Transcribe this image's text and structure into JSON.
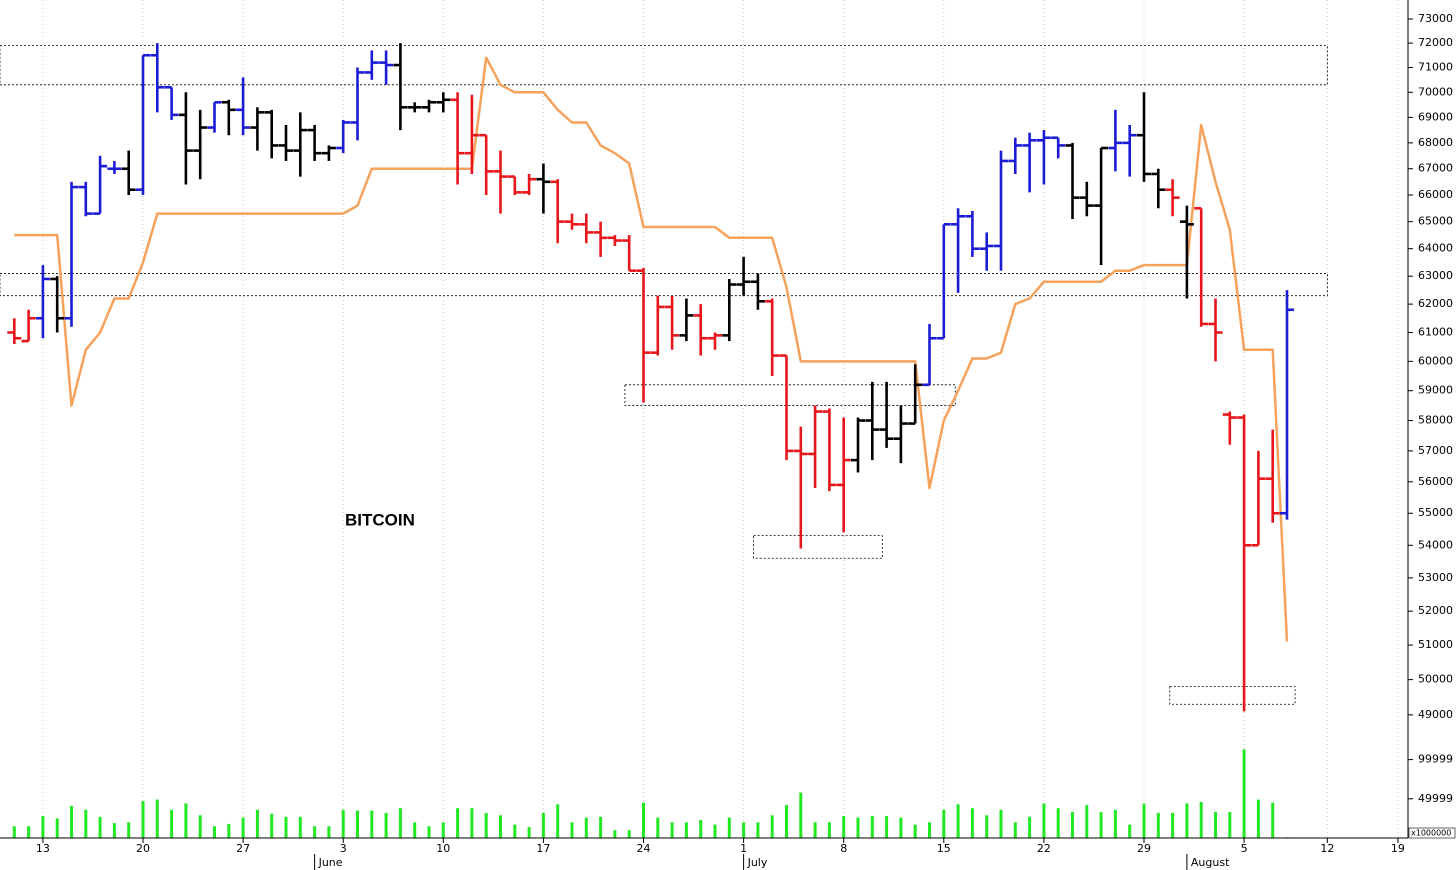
{
  "chart_data": {
    "type": "ohlc",
    "title": "BITCOIN",
    "log_scale": true,
    "grid": true,
    "ylim": [
      48300,
      73800
    ],
    "yticks": [
      49000,
      50000,
      51000,
      52000,
      53000,
      54000,
      55000,
      56000,
      57000,
      58000,
      59000,
      60000,
      61000,
      62000,
      63000,
      64000,
      65000,
      66000,
      67000,
      68000,
      69000,
      70000,
      71000,
      72000,
      73000
    ],
    "xlim": [
      -1,
      101
    ],
    "xticks": [
      {
        "value": 2,
        "label": "13"
      },
      {
        "value": 9,
        "label": "20"
      },
      {
        "value": 16,
        "label": "27"
      },
      {
        "value": 23,
        "label": "3"
      },
      {
        "value": 30,
        "label": "10"
      },
      {
        "value": 37,
        "label": "17"
      },
      {
        "value": 44,
        "label": "24"
      },
      {
        "value": 51,
        "label": "1"
      },
      {
        "value": 58,
        "label": "8"
      },
      {
        "value": 65,
        "label": "15"
      },
      {
        "value": 72,
        "label": "22"
      },
      {
        "value": 79,
        "label": "29"
      },
      {
        "value": 86,
        "label": "5"
      },
      {
        "value": 93,
        "label": "12"
      },
      {
        "value": 100,
        "label": "19"
      }
    ],
    "month_ticks": [
      {
        "value": 21,
        "label": "June"
      },
      {
        "value": 51,
        "label": "July"
      },
      {
        "value": 82,
        "label": "August"
      }
    ],
    "open": [
      61000,
      60700,
      61500,
      62900,
      61500,
      66300,
      65300,
      67000,
      67000,
      66200,
      71500,
      70200,
      69100,
      67700,
      68600,
      69600,
      69300,
      68600,
      69200,
      67900,
      67700,
      68500,
      67600,
      67800,
      68800,
      70800,
      71200,
      71100,
      69400,
      69400,
      69600,
      69700,
      67600,
      68300,
      66900,
      66700,
      66100,
      66600,
      66500,
      65000,
      64900,
      64600,
      64400,
      64300,
      63200,
      60300,
      61900,
      60900,
      61600,
      60800,
      60900,
      62700,
      62800,
      62100,
      60200,
      57000,
      56900,
      58300,
      55900,
      56700,
      58000,
      57700,
      57400,
      57900,
      59200,
      60800,
      64900,
      65200,
      64000,
      64100,
      67300,
      67900,
      68100,
      68200,
      67900,
      65900,
      65600,
      67800,
      68000,
      68300,
      66800,
      66200,
      65000,
      65500,
      61300,
      58200,
      58100,
      54000,
      56100,
      55000
    ],
    "high": [
      61500,
      61800,
      63400,
      63000,
      66500,
      66500,
      67500,
      67300,
      67700,
      71500,
      72000,
      70200,
      70000,
      69300,
      69600,
      69700,
      70600,
      69400,
      69300,
      68700,
      69200,
      68700,
      67900,
      68900,
      71000,
      71700,
      71700,
      72000,
      69600,
      69700,
      70000,
      70000,
      69900,
      68300,
      67700,
      66700,
      66800,
      67200,
      66600,
      65300,
      65300,
      65000,
      64500,
      64500,
      63300,
      62300,
      62300,
      62200,
      62000,
      61000,
      62900,
      63700,
      63100,
      62200,
      60200,
      57800,
      58500,
      58400,
      58100,
      58100,
      59300,
      59300,
      58500,
      59900,
      61300,
      64900,
      65500,
      65400,
      64600,
      67700,
      68200,
      68400,
      68500,
      68200,
      68000,
      66500,
      67800,
      69300,
      68700,
      70000,
      67000,
      66600,
      65600,
      65500,
      62200,
      58300,
      58200,
      57000,
      57700,
      62500
    ],
    "low": [
      60600,
      60700,
      60800,
      61000,
      61200,
      65200,
      65300,
      66800,
      66000,
      66000,
      69200,
      68900,
      66400,
      66600,
      68400,
      68300,
      68300,
      67700,
      67400,
      67300,
      66700,
      67300,
      67300,
      67600,
      68100,
      70500,
      70300,
      68500,
      69200,
      69200,
      69200,
      66400,
      66800,
      66000,
      65300,
      66000,
      66000,
      65300,
      64200,
      64700,
      64200,
      63700,
      64100,
      63200,
      58600,
      60200,
      60400,
      60700,
      60200,
      60400,
      60700,
      62300,
      61800,
      59500,
      56700,
      53900,
      55800,
      55700,
      54400,
      56300,
      56700,
      57100,
      56600,
      57900,
      59200,
      60800,
      62400,
      63700,
      63200,
      63200,
      66800,
      66100,
      66400,
      67400,
      65100,
      65200,
      63400,
      66900,
      66700,
      66500,
      65500,
      65200,
      62200,
      61200,
      60000,
      57200,
      49100,
      54000,
      54700,
      54800
    ],
    "close": [
      60800,
      61500,
      62900,
      61500,
      66300,
      65300,
      67100,
      67000,
      66200,
      71500,
      70200,
      69100,
      67700,
      68600,
      69600,
      69300,
      68600,
      69200,
      67900,
      67700,
      68500,
      67600,
      67800,
      68800,
      70800,
      71200,
      71100,
      69400,
      69400,
      69600,
      69700,
      67600,
      68300,
      66900,
      66700,
      66100,
      66600,
      66500,
      65000,
      64900,
      64600,
      64400,
      64300,
      63200,
      60300,
      61900,
      60900,
      61600,
      60800,
      60900,
      62700,
      62800,
      62100,
      60200,
      57000,
      56900,
      58300,
      55900,
      56700,
      58000,
      57700,
      57400,
      57900,
      59200,
      60800,
      64900,
      65200,
      64000,
      64100,
      67300,
      67900,
      68100,
      68200,
      67900,
      65900,
      65600,
      67800,
      68000,
      68300,
      66800,
      66200,
      65900,
      64900,
      61300,
      61000,
      58100,
      54000,
      56100,
      55000,
      61800
    ],
    "bar_colors": [
      "#e8161b",
      "#e8161b",
      "#1c1cd6",
      "#000000",
      "#1c1cd6",
      "#1c1cd6",
      "#1c1cd6",
      "#1c1cd6",
      "#000000",
      "#1c1cd6",
      "#1c1cd6",
      "#1c1cd6",
      "#000000",
      "#000000",
      "#1c1cd6",
      "#000000",
      "#1c1cd6",
      "#000000",
      "#000000",
      "#000000",
      "#000000",
      "#000000",
      "#000000",
      "#1c1cd6",
      "#1c1cd6",
      "#1c1cd6",
      "#1c1cd6",
      "#000000",
      "#000000",
      "#000000",
      "#000000",
      "#e8161b",
      "#e8161b",
      "#e8161b",
      "#e8161b",
      "#e8161b",
      "#e8161b",
      "#000000",
      "#e8161b",
      "#e8161b",
      "#e8161b",
      "#e8161b",
      "#e8161b",
      "#e8161b",
      "#e8161b",
      "#e8161b",
      "#e8161b",
      "#000000",
      "#e8161b",
      "#e8161b",
      "#000000",
      "#000000",
      "#000000",
      "#e8161b",
      "#e8161b",
      "#e8161b",
      "#e8161b",
      "#e8161b",
      "#e8161b",
      "#000000",
      "#000000",
      "#000000",
      "#000000",
      "#000000",
      "#1c1cd6",
      "#1c1cd6",
      "#1c1cd6",
      "#1c1cd6",
      "#1c1cd6",
      "#1c1cd6",
      "#1c1cd6",
      "#1c1cd6",
      "#1c1cd6",
      "#1c1cd6",
      "#000000",
      "#000000",
      "#000000",
      "#1c1cd6",
      "#1c1cd6",
      "#000000",
      "#000000",
      "#e8161b",
      "#000000",
      "#e8161b",
      "#e8161b",
      "#e8161b",
      "#e8161b",
      "#e8161b",
      "#e8161b",
      "#1c1cd6"
    ],
    "stop_line": {
      "color": "#f4a25c",
      "values": [
        64500,
        64500,
        64500,
        64500,
        58500,
        60400,
        61000,
        62200,
        62200,
        63500,
        65300,
        65300,
        65300,
        65300,
        65300,
        65300,
        65300,
        65300,
        65300,
        65300,
        65300,
        65300,
        65300,
        65300,
        65600,
        67000,
        67000,
        67000,
        67000,
        67000,
        67000,
        67000,
        67000,
        71400,
        70300,
        70000,
        70000,
        70000,
        69300,
        68800,
        68800,
        67900,
        67600,
        67200,
        64800,
        64800,
        64800,
        64800,
        64800,
        64800,
        64400,
        64400,
        64400,
        64400,
        62600,
        60000,
        60000,
        60000,
        60000,
        60000,
        60000,
        60000,
        60000,
        60000,
        55800,
        58000,
        59000,
        60100,
        60100,
        60300,
        62000,
        62200,
        62800,
        62800,
        62800,
        62800,
        62800,
        63200,
        63200,
        63400,
        63400,
        63400,
        63400,
        68700,
        66500,
        64700,
        60400,
        60400,
        60400,
        51100
      ]
    },
    "zones": [
      {
        "x": [
          -1,
          93
        ],
        "y": [
          70300,
          71900
        ]
      },
      {
        "x": [
          -1,
          93
        ],
        "y": [
          62300,
          63100
        ]
      },
      {
        "x": [
          42.7,
          65.8
        ],
        "y": [
          58500,
          59200
        ]
      },
      {
        "x": [
          51.7,
          60.7
        ],
        "y": [
          53600,
          54300
        ]
      },
      {
        "x": [
          80.8,
          89.8
        ],
        "y": [
          49300,
          49800
        ]
      }
    ],
    "volume": {
      "color": "#22e822",
      "unit_label": "x1000000",
      "ylim": [
        0,
        125000
      ],
      "yticks": [
        49999,
        99999
      ],
      "values": [
        15000,
        15000,
        28000,
        25000,
        41000,
        36000,
        27000,
        19000,
        20000,
        47000,
        49000,
        36000,
        44000,
        29000,
        15000,
        18000,
        26000,
        36000,
        31000,
        27000,
        27000,
        15000,
        15000,
        36000,
        35000,
        35000,
        32000,
        38000,
        20000,
        15000,
        20000,
        38000,
        38000,
        32000,
        29000,
        17000,
        14000,
        32000,
        43000,
        20000,
        26000,
        27000,
        10000,
        10000,
        45000,
        26000,
        20000,
        20000,
        23000,
        17000,
        26000,
        20000,
        20000,
        29000,
        42000,
        58000,
        20000,
        20000,
        28000,
        26000,
        28000,
        28000,
        26000,
        17000,
        20000,
        36000,
        43000,
        38000,
        29000,
        36000,
        20000,
        27000,
        44000,
        38000,
        33000,
        42000,
        33000,
        36000,
        17000,
        44000,
        32000,
        32000,
        44000,
        46000,
        33000,
        33000,
        113000,
        49000,
        45000,
        1000
      ]
    }
  }
}
